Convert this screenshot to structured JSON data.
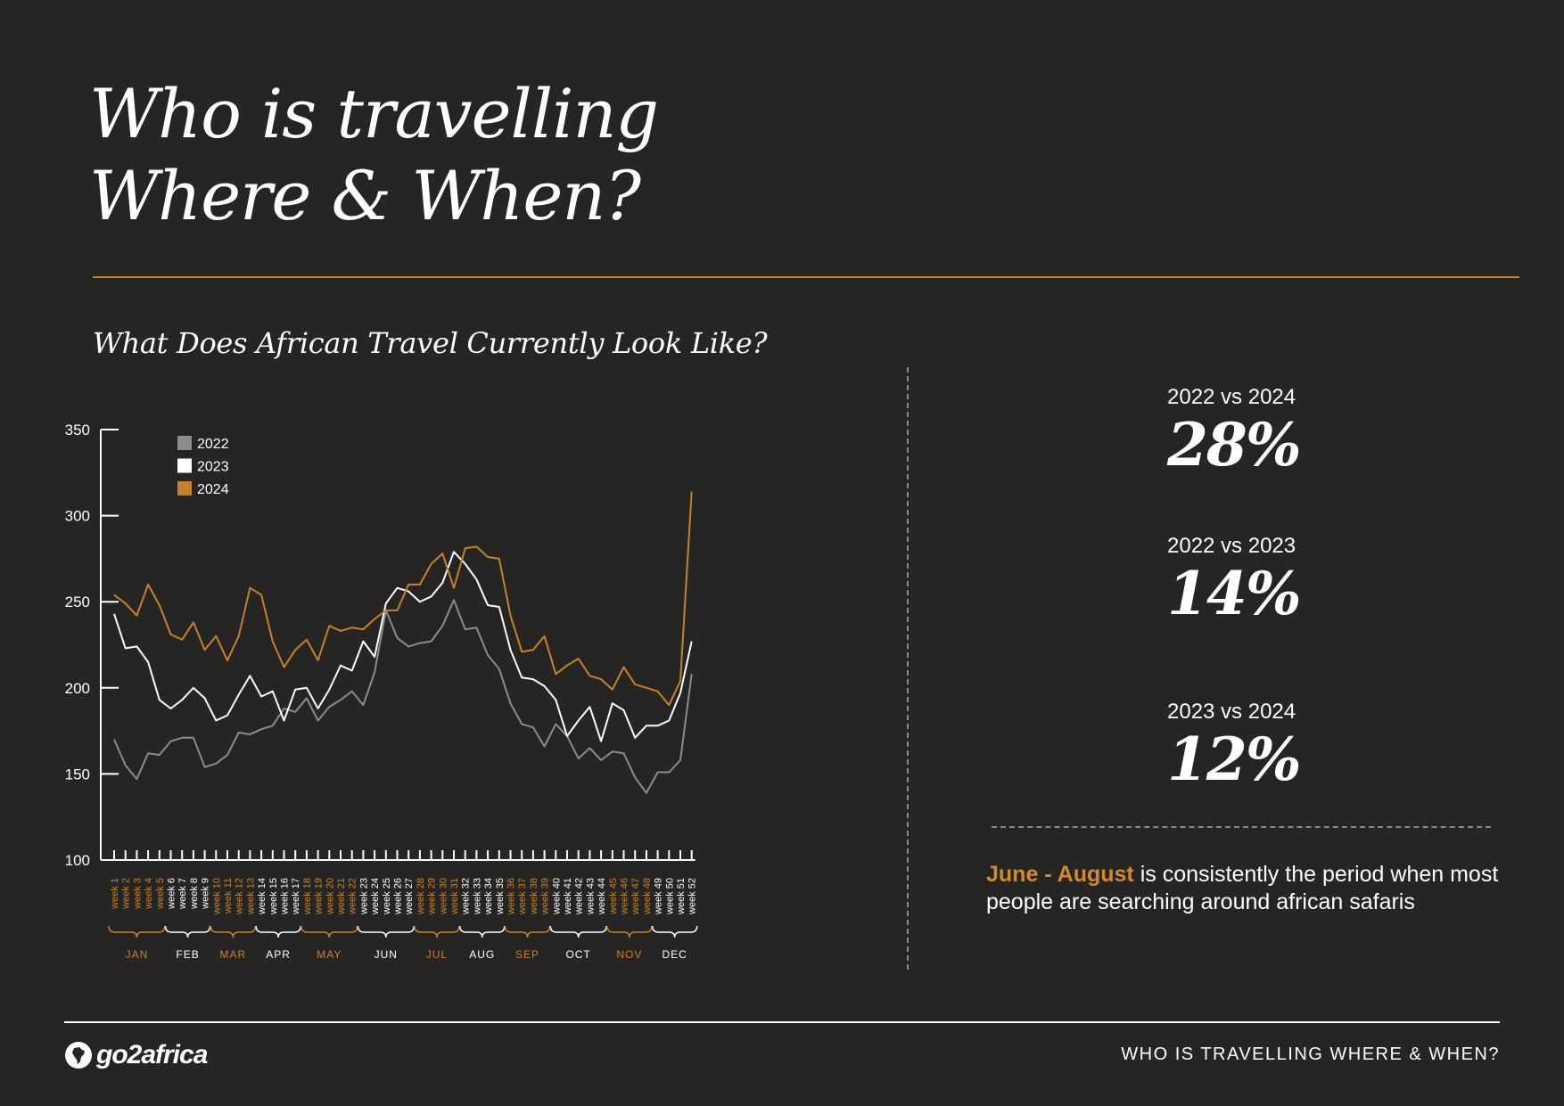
{
  "header": {
    "title_line1": "Who is travelling",
    "title_line2": "Where & When?"
  },
  "section": {
    "subtitle": "What Does African Travel Currently Look Like?"
  },
  "stats": [
    {
      "label": "2022 vs 2024",
      "value": "28%"
    },
    {
      "label": "2022 vs 2023",
      "value": "14%"
    },
    {
      "label": "2023 vs 2024",
      "value": "12%"
    }
  ],
  "note": {
    "highlight": "June - August",
    "text": " is consistently the period when most people are searching around african safaris"
  },
  "footer": {
    "brand": "go2africa",
    "title": "WHO IS TRAVELLING WHERE & WHEN?"
  },
  "colors": {
    "background": "#262524",
    "accent": "#c4822f",
    "series_2022": "#8d8c8a",
    "series_2023": "#ffffff",
    "series_2024": "#c4822f"
  },
  "chart_data": {
    "type": "line",
    "yticks": [
      100,
      150,
      200,
      250,
      300,
      350
    ],
    "ylim": [
      100,
      350
    ],
    "grid": false,
    "legend_position": "top-left",
    "x": [
      "week 1",
      "week 2",
      "week 3",
      "week 4",
      "week 5",
      "week 6",
      "week 7",
      "week 8",
      "week 9",
      "week 10",
      "week 11",
      "week 12",
      "week 13",
      "week 14",
      "week 15",
      "week 16",
      "week 17",
      "week 18",
      "week 19",
      "week 20",
      "week 21",
      "week 22",
      "week 23",
      "week 24",
      "week 25",
      "week 26",
      "week 27",
      "week 28",
      "week 29",
      "week 30",
      "week 31",
      "week 32",
      "week 33",
      "week 34",
      "week 35",
      "week 36",
      "week 37",
      "week 38",
      "week 39",
      "week 40",
      "week 41",
      "week 42",
      "week 43",
      "week 44",
      "week 45",
      "week 46",
      "week 47",
      "week 48",
      "week 49",
      "week 50",
      "week 51",
      "week 52"
    ],
    "months": [
      {
        "label": "JAN",
        "start": 1,
        "end": 5,
        "accent": true
      },
      {
        "label": "FEB",
        "start": 6,
        "end": 9,
        "accent": false
      },
      {
        "label": "MAR",
        "start": 10,
        "end": 13,
        "accent": true
      },
      {
        "label": "APR",
        "start": 14,
        "end": 17,
        "accent": false
      },
      {
        "label": "MAY",
        "start": 18,
        "end": 22,
        "accent": true
      },
      {
        "label": "JUN",
        "start": 23,
        "end": 27,
        "accent": false
      },
      {
        "label": "JUL",
        "start": 28,
        "end": 31,
        "accent": true
      },
      {
        "label": "AUG",
        "start": 32,
        "end": 35,
        "accent": false
      },
      {
        "label": "SEP",
        "start": 36,
        "end": 39,
        "accent": true
      },
      {
        "label": "OCT",
        "start": 40,
        "end": 44,
        "accent": false
      },
      {
        "label": "NOV",
        "start": 45,
        "end": 48,
        "accent": true
      },
      {
        "label": "DEC",
        "start": 49,
        "end": 52,
        "accent": false
      }
    ],
    "series": [
      {
        "name": "2022",
        "color": "#8d8c8a",
        "values": [
          170,
          155,
          147,
          162,
          161,
          169,
          171,
          171,
          154,
          156,
          161,
          174,
          173,
          176,
          178,
          188,
          186,
          194,
          181,
          189,
          193,
          198,
          190,
          209,
          245,
          229,
          224,
          226,
          227,
          236,
          251,
          234,
          235,
          219,
          211,
          191,
          179,
          177,
          166,
          179,
          172,
          159,
          165,
          158,
          163,
          162,
          148,
          139,
          151,
          151,
          158,
          208
        ]
      },
      {
        "name": "2023",
        "color": "#ffffff",
        "values": [
          243,
          223,
          224,
          215,
          193,
          188,
          193,
          200,
          194,
          181,
          184,
          196,
          207,
          195,
          198,
          181,
          199,
          200,
          188,
          199,
          213,
          210,
          227,
          218,
          249,
          258,
          256,
          250,
          253,
          261,
          279,
          272,
          263,
          248,
          247,
          222,
          206,
          205,
          201,
          193,
          172,
          181,
          189,
          169,
          191,
          187,
          171,
          178,
          178,
          181,
          197,
          227
        ]
      },
      {
        "name": "2024",
        "color": "#c4822f",
        "values": [
          254,
          249,
          242,
          260,
          248,
          231,
          228,
          238,
          222,
          230,
          216,
          230,
          258,
          254,
          227,
          212,
          222,
          228,
          216,
          236,
          233,
          235,
          234,
          240,
          245,
          245,
          260,
          260,
          272,
          278,
          258,
          281,
          282,
          276,
          275,
          242,
          221,
          222,
          230,
          208,
          213,
          217,
          207,
          205,
          199,
          212,
          202,
          200,
          198,
          190,
          204,
          314
        ]
      }
    ]
  }
}
